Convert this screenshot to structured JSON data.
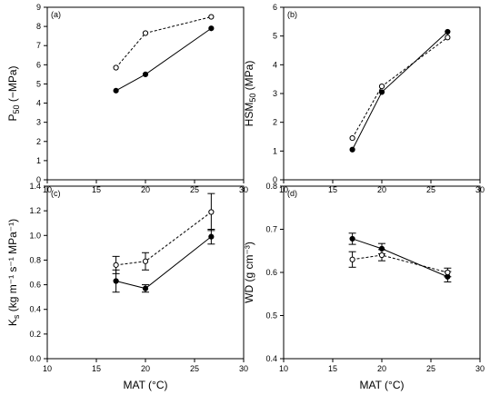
{
  "chart_data": [
    {
      "type": "line",
      "panel_label": "(a)",
      "xlabel": "",
      "ylabel_main": "P",
      "ylabel_sub": "50",
      "ylabel_tail": " (−MPa)",
      "xlim": [
        10,
        30
      ],
      "ylim": [
        0,
        9
      ],
      "xticks": [
        10,
        15,
        20,
        25,
        30
      ],
      "yticks": [
        0,
        1,
        2,
        3,
        4,
        5,
        6,
        7,
        8,
        9
      ],
      "ytick_decimals": 0,
      "x": [
        17,
        20,
        26.7
      ],
      "series": [
        {
          "style": "filled-solid",
          "values": [
            4.65,
            5.5,
            7.9
          ]
        },
        {
          "style": "open-dashed",
          "values": [
            5.85,
            7.65,
            8.5
          ]
        }
      ]
    },
    {
      "type": "line",
      "panel_label": "(b)",
      "xlabel": "",
      "ylabel_main": "HSM",
      "ylabel_sub": "50",
      "ylabel_tail": " (MPa)",
      "xlim": [
        10,
        30
      ],
      "ylim": [
        0,
        6
      ],
      "xticks": [
        10,
        15,
        20,
        25,
        30
      ],
      "yticks": [
        0,
        1,
        2,
        3,
        4,
        5,
        6
      ],
      "ytick_decimals": 0,
      "x": [
        17,
        20,
        26.7
      ],
      "series": [
        {
          "style": "filled-solid",
          "values": [
            1.05,
            3.05,
            5.15
          ]
        },
        {
          "style": "open-dashed",
          "values": [
            1.45,
            3.25,
            4.95
          ]
        }
      ]
    },
    {
      "type": "line",
      "panel_label": "(c)",
      "xlabel": "MAT (°C)",
      "ylabel_main": "K",
      "ylabel_sub": "s",
      "ylabel_tail": " (kg m⁻¹ s⁻¹ MPa⁻¹)",
      "xlim": [
        10,
        30
      ],
      "ylim": [
        0,
        1.4
      ],
      "xticks": [
        10,
        15,
        20,
        25,
        30
      ],
      "yticks": [
        0.0,
        0.2,
        0.4,
        0.6,
        0.8,
        1.0,
        1.2,
        1.4
      ],
      "ytick_decimals": 1,
      "x": [
        17,
        20,
        26.7
      ],
      "series": [
        {
          "style": "filled-solid",
          "values": [
            0.63,
            0.57,
            0.99
          ],
          "err": [
            0.09,
            0.03,
            0.06
          ]
        },
        {
          "style": "open-dashed",
          "values": [
            0.76,
            0.79,
            1.19
          ],
          "err": [
            0.07,
            0.07,
            0.15
          ]
        }
      ]
    },
    {
      "type": "line",
      "panel_label": "(d)",
      "xlabel": "MAT (°C)",
      "ylabel_main": "WD",
      "ylabel_sub": "",
      "ylabel_tail": " (g cm⁻³)",
      "xlim": [
        10,
        30
      ],
      "ylim": [
        0.4,
        0.8
      ],
      "xticks": [
        10,
        15,
        20,
        25,
        30
      ],
      "yticks": [
        0.4,
        0.5,
        0.6,
        0.7,
        0.8
      ],
      "ytick_decimals": 1,
      "x": [
        17,
        20,
        26.7
      ],
      "series": [
        {
          "style": "filled-solid",
          "values": [
            0.678,
            0.655,
            0.59
          ],
          "err": [
            0.013,
            0.012,
            0.012
          ]
        },
        {
          "style": "open-dashed",
          "values": [
            0.63,
            0.64,
            0.6
          ],
          "err": [
            0.018,
            0.013,
            0.01
          ]
        }
      ]
    }
  ]
}
